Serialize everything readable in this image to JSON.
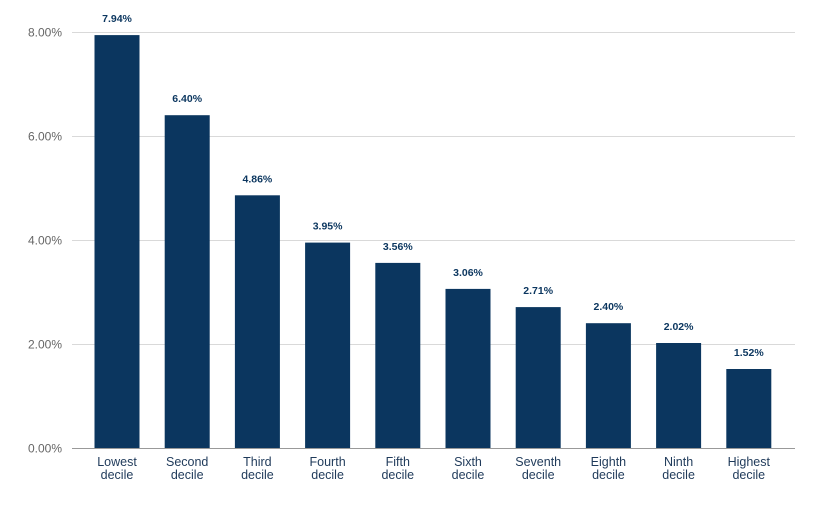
{
  "chart_data": {
    "type": "bar",
    "title": "",
    "xlabel": "",
    "ylabel": "",
    "categories": [
      [
        "Lowest",
        "decile"
      ],
      [
        "Second",
        "decile"
      ],
      [
        "Third",
        "decile"
      ],
      [
        "Fourth",
        "decile"
      ],
      [
        "Fifth",
        "decile"
      ],
      [
        "Sixth",
        "decile"
      ],
      [
        "Seventh",
        "decile"
      ],
      [
        "Eighth",
        "decile"
      ],
      [
        "Ninth",
        "decile"
      ],
      [
        "Highest",
        "decile"
      ]
    ],
    "values": [
      7.94,
      6.4,
      4.86,
      3.95,
      3.56,
      3.06,
      2.71,
      2.4,
      2.02,
      1.52
    ],
    "data_labels": [
      "7.94%",
      "6.40%",
      "4.86%",
      "3.95%",
      "3.56%",
      "3.06%",
      "2.71%",
      "2.40%",
      "2.02%",
      "1.52%"
    ],
    "ylim": [
      0,
      8
    ],
    "y_ticks": [
      0,
      2,
      4,
      6,
      8
    ],
    "y_tick_labels": [
      "0.00%",
      "2.00%",
      "4.00%",
      "6.00%",
      "8.00%"
    ],
    "grid": true,
    "legend": "none"
  },
  "colors": {
    "bar": "#0b365f",
    "gridline": "#d9d9d9",
    "axis_line": "#999999",
    "tick_text": "#666666",
    "category_text": "#1f3a5a",
    "data_label_text": "#0b365f"
  }
}
